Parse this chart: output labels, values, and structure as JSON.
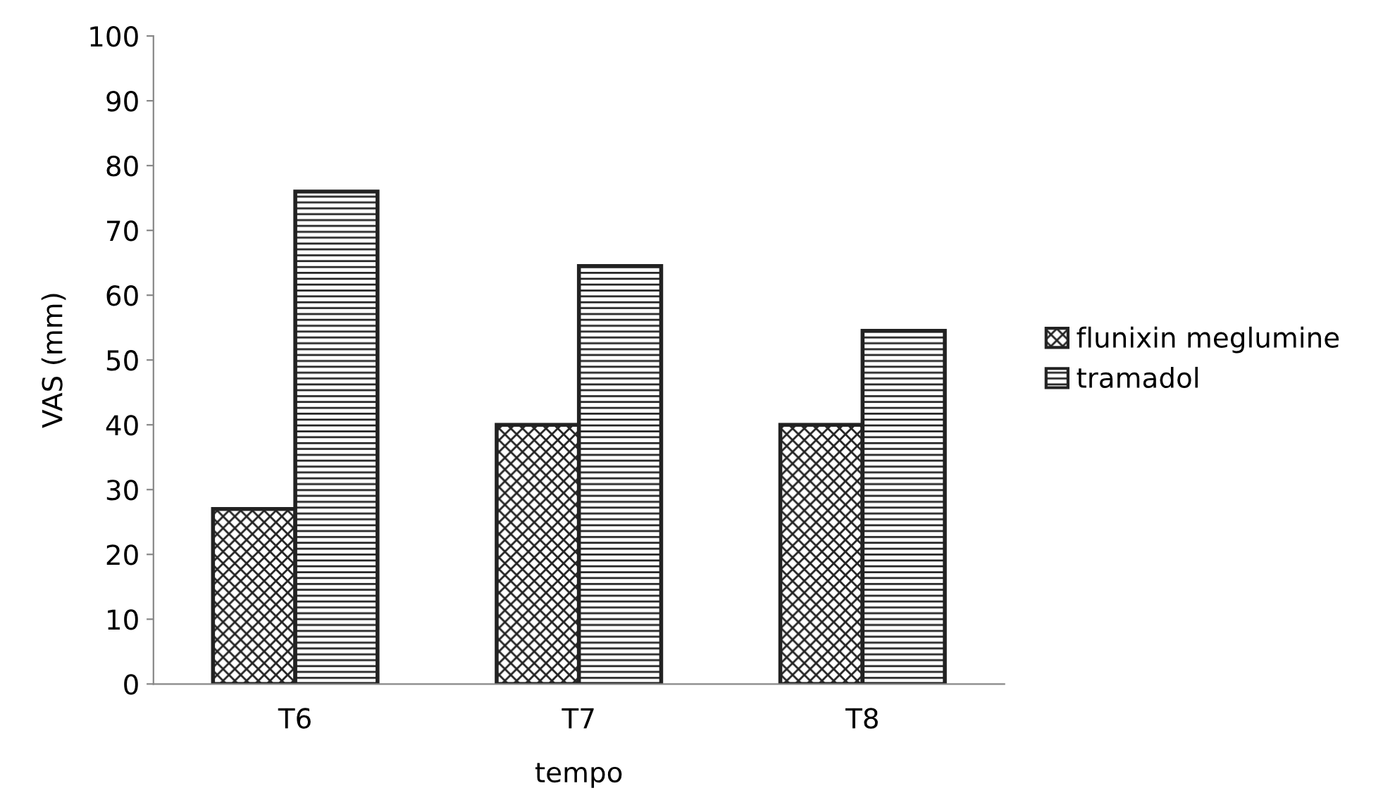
{
  "chart_data": {
    "type": "bar",
    "xlabel": "tempo",
    "ylabel": "VAS (mm)",
    "categories": [
      "T6",
      "T7",
      "T8"
    ],
    "series": [
      {
        "name": "flunixin meglumine",
        "color": "#222222",
        "values": [
          27,
          40,
          40
        ]
      },
      {
        "name": "tramadol",
        "color": "#222222",
        "values": [
          76,
          64.5,
          54.5
        ]
      }
    ],
    "ylim": [
      0,
      100
    ],
    "yticks": [
      0,
      10,
      20,
      30,
      40,
      50,
      60,
      70,
      80,
      90,
      100
    ],
    "grid": false,
    "legend": "right"
  }
}
